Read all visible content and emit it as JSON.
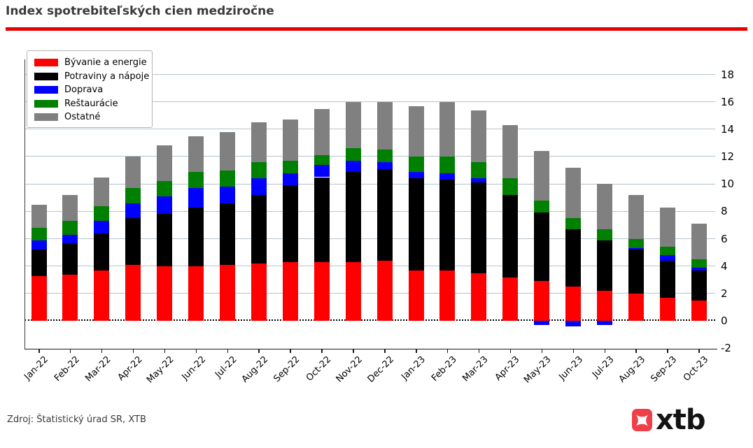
{
  "header": {
    "title": "Index spotrebiteľských cien medziročne",
    "accent_color": "#e60000"
  },
  "chart_data": {
    "type": "bar",
    "stacked": true,
    "title": "Index spotrebiteľských cien medziročne",
    "xlabel": "",
    "ylabel": "",
    "ylim": [
      -2,
      18.9
    ],
    "yticks": [
      18,
      16,
      14,
      12,
      10,
      8,
      6,
      4,
      2,
      0,
      -2
    ],
    "grid": true,
    "zero_line": "dotted",
    "legend_position": "upper-left",
    "categories": [
      "Jan-22",
      "Feb-22",
      "Mar-22",
      "Apr-22",
      "May-22",
      "Jun-22",
      "Jul-22",
      "Aug-22",
      "Sep-22",
      "Oct-22",
      "Nov-22",
      "Dec-22",
      "Jan-23",
      "Feb-23",
      "Mar-23",
      "Apr-23",
      "May-23",
      "Jun-23",
      "Jul-23",
      "Aug-23",
      "Sep-23",
      "Oct-23"
    ],
    "series": [
      {
        "name": "Bývanie a energie",
        "key": "byvanie-a-energie",
        "color": "#ff0000",
        "values": [
          3.3,
          3.4,
          3.7,
          4.1,
          4.0,
          4.0,
          4.1,
          4.2,
          4.3,
          4.3,
          4.3,
          4.4,
          3.7,
          3.7,
          3.5,
          3.2,
          2.9,
          2.5,
          2.2,
          2.0,
          1.7,
          1.5
        ]
      },
      {
        "name": "Potraviny a nápoje",
        "key": "potraviny-a-napoje",
        "color": "#000000",
        "values": [
          1.9,
          2.3,
          2.7,
          3.4,
          3.8,
          4.3,
          4.5,
          5.0,
          5.6,
          6.2,
          6.6,
          6.7,
          6.7,
          6.6,
          6.6,
          6.0,
          5.0,
          4.2,
          3.7,
          3.2,
          2.7,
          2.2
        ]
      },
      {
        "name": "Doprava",
        "key": "doprava",
        "color": "#0000ff",
        "values": [
          0.7,
          0.6,
          0.9,
          1.1,
          1.3,
          1.4,
          1.2,
          1.2,
          0.9,
          0.9,
          0.8,
          0.5,
          0.5,
          0.5,
          0.3,
          0.0,
          -0.3,
          -0.4,
          -0.3,
          0.1,
          0.4,
          0.2
        ]
      },
      {
        "name": "Reštaurácie",
        "key": "restauracie",
        "color": "#008000",
        "values": [
          0.9,
          1.0,
          1.1,
          1.1,
          1.1,
          1.2,
          1.2,
          1.2,
          0.9,
          0.7,
          0.9,
          0.9,
          1.1,
          1.2,
          1.2,
          1.2,
          0.9,
          0.8,
          0.8,
          0.7,
          0.6,
          0.6
        ]
      },
      {
        "name": "Ostatné",
        "key": "ostatne",
        "color": "#808080",
        "values": [
          1.7,
          1.9,
          2.1,
          2.3,
          2.6,
          2.6,
          2.8,
          2.9,
          3.0,
          3.4,
          3.4,
          3.5,
          3.7,
          4.0,
          3.8,
          3.9,
          3.6,
          3.7,
          3.3,
          3.2,
          2.9,
          2.6
        ]
      }
    ]
  },
  "footer": {
    "source": "Zdroj: Štatistický úrad SR, XTB",
    "logo_text": "xtb",
    "logo_color": "#ef4049"
  }
}
